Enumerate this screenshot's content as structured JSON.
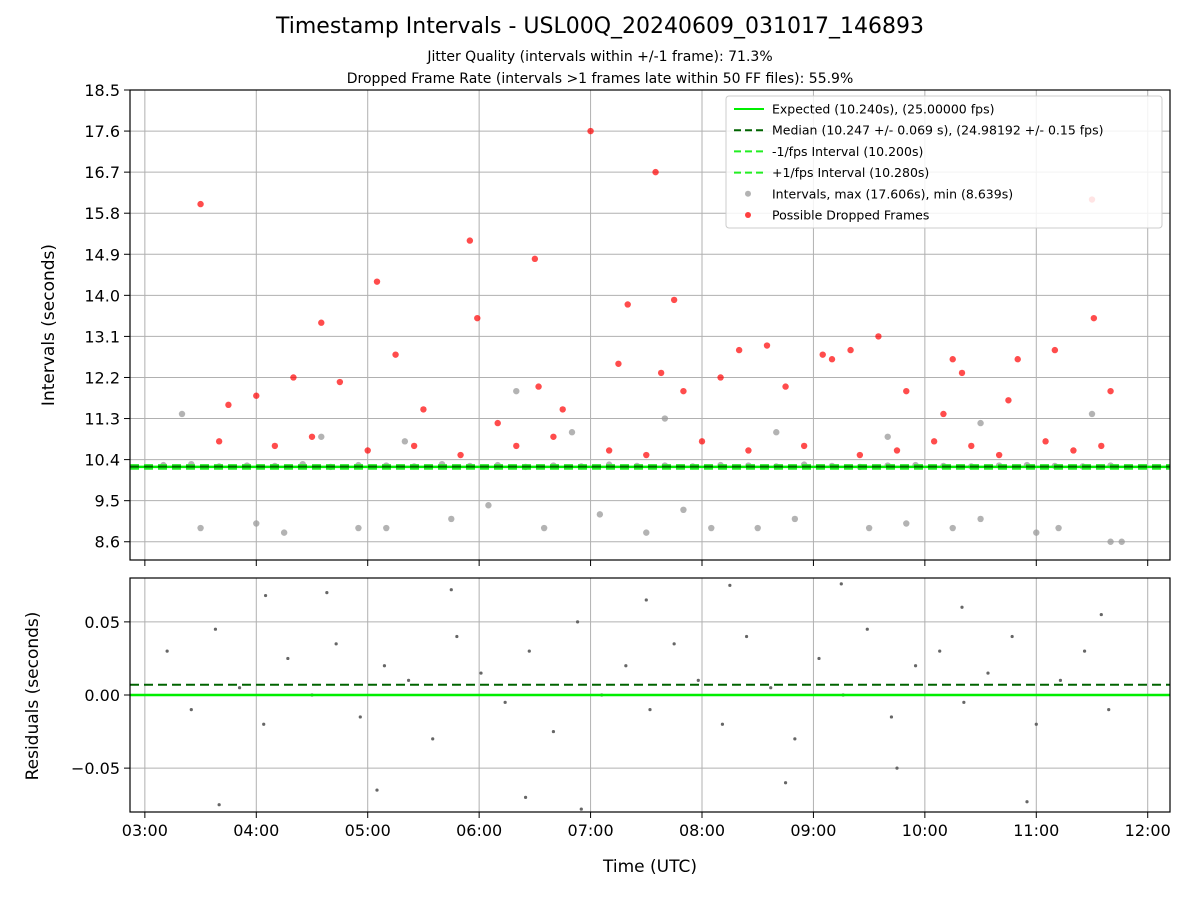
{
  "figure": {
    "title": "Timestamp Intervals - USL00Q_20240609_031017_146893",
    "subtitle_1": "Jitter Quality (intervals within +/-1 frame): 71.3%",
    "subtitle_2": "Dropped Frame Rate (intervals >1 frames late within 50 FF files): 55.9%"
  },
  "chart_data": [
    {
      "type": "scatter",
      "ylabel": "Intervals (seconds)",
      "ylim": [
        8.2,
        18.5
      ],
      "yticks": [
        8.6,
        9.5,
        10.4,
        11.3,
        12.2,
        13.1,
        14.0,
        14.9,
        15.8,
        16.7,
        17.6,
        18.5
      ],
      "ytick_labels": [
        "8.6",
        "9.5",
        "10.4",
        "11.3",
        "12.2",
        "13.1",
        "14.0",
        "14.9",
        "15.8",
        "16.7",
        "17.6",
        "18.5"
      ],
      "xlim": [
        "02:52",
        "12:12"
      ],
      "grid": true,
      "legend_position": "top-right",
      "colors": {
        "expected": "#00ee00",
        "median": "#006400",
        "interval_band": "#22ee22",
        "intervals": "#999999",
        "dropped": "#ff0000"
      },
      "series": [
        {
          "name": "Expected (10.240s), (25.00000 fps)",
          "kind": "hline",
          "y": 10.24,
          "style": "solid"
        },
        {
          "name": "Median (10.247 +/- 0.069 s), (24.98192 +/- 0.15 fps)",
          "kind": "hline",
          "y": 10.247,
          "style": "dashed"
        },
        {
          "name": "-1/fps Interval (10.200s)",
          "kind": "hline",
          "y": 10.2,
          "style": "dashed"
        },
        {
          "name": "+1/fps Interval (10.280s)",
          "kind": "hline",
          "y": 10.28,
          "style": "dashed"
        },
        {
          "name": "Intervals, max (17.606s), min (8.639s)",
          "kind": "points",
          "x": [
            "03:10",
            "03:25",
            "03:40",
            "03:55",
            "04:10",
            "04:25",
            "04:40",
            "04:55",
            "05:10",
            "05:25",
            "05:40",
            "05:55",
            "06:10",
            "06:25",
            "06:40",
            "06:55",
            "07:10",
            "07:25",
            "07:40",
            "07:55",
            "08:10",
            "08:25",
            "08:40",
            "08:55",
            "09:10",
            "09:25",
            "09:40",
            "09:55",
            "10:10",
            "10:25",
            "10:40",
            "10:55",
            "11:10",
            "11:25",
            "11:40",
            "03:30",
            "04:00",
            "04:15",
            "04:55",
            "05:10",
            "05:45",
            "06:05",
            "06:35",
            "07:05",
            "07:30",
            "07:50",
            "08:05",
            "08:30",
            "08:50",
            "09:30",
            "09:50",
            "10:15",
            "10:30",
            "11:00",
            "11:12",
            "11:40",
            "11:46",
            "03:20",
            "04:35",
            "05:20",
            "06:20",
            "06:50",
            "07:40",
            "08:40",
            "09:40",
            "10:30",
            "11:30"
          ],
          "y": [
            10.28,
            10.3,
            10.25,
            10.27,
            10.26,
            10.3,
            10.24,
            10.28,
            10.27,
            10.25,
            10.3,
            10.26,
            10.28,
            10.24,
            10.27,
            10.25,
            10.29,
            10.26,
            10.27,
            10.25,
            10.28,
            10.27,
            10.25,
            10.29,
            10.26,
            10.24,
            10.27,
            10.28,
            10.26,
            10.25,
            10.27,
            10.28,
            10.26,
            10.25,
            10.27,
            8.9,
            9.0,
            8.8,
            8.9,
            8.9,
            9.1,
            9.4,
            8.9,
            9.2,
            8.8,
            9.3,
            8.9,
            8.9,
            9.1,
            8.9,
            9.0,
            8.9,
            9.1,
            8.8,
            8.9,
            8.6,
            8.6,
            11.4,
            10.9,
            10.8,
            11.9,
            11.0,
            11.3,
            11.0,
            10.9,
            11.2,
            11.4
          ]
        },
        {
          "name": "Possible Dropped Frames",
          "kind": "points",
          "x": [
            "03:30",
            "04:20",
            "04:35",
            "05:05",
            "05:55",
            "05:59",
            "06:30",
            "06:32",
            "07:00",
            "07:20",
            "07:35",
            "07:38",
            "07:45",
            "08:35",
            "09:05",
            "09:35",
            "10:15",
            "11:30",
            "11:31",
            "03:45",
            "04:00",
            "04:45",
            "05:15",
            "05:30",
            "06:10",
            "06:45",
            "07:15",
            "07:50",
            "08:10",
            "08:20",
            "08:45",
            "09:10",
            "09:20",
            "09:50",
            "10:10",
            "10:20",
            "10:45",
            "10:50",
            "11:10",
            "11:40",
            "03:40",
            "04:10",
            "04:30",
            "05:00",
            "05:25",
            "05:50",
            "06:20",
            "06:40",
            "07:10",
            "07:30",
            "08:00",
            "08:25",
            "08:55",
            "09:25",
            "09:45",
            "10:05",
            "10:25",
            "10:40",
            "11:05",
            "11:20",
            "11:35"
          ],
          "y": [
            16.0,
            12.2,
            13.4,
            14.3,
            15.2,
            13.5,
            14.8,
            12.0,
            17.6,
            13.8,
            16.7,
            12.3,
            13.9,
            12.9,
            12.7,
            13.1,
            12.6,
            16.1,
            13.5,
            11.6,
            11.8,
            12.1,
            12.7,
            11.5,
            11.2,
            11.5,
            12.5,
            11.9,
            12.2,
            12.8,
            12.0,
            12.6,
            12.8,
            11.9,
            11.4,
            12.3,
            11.7,
            12.6,
            12.8,
            11.9,
            10.8,
            10.7,
            10.9,
            10.6,
            10.7,
            10.5,
            10.7,
            10.9,
            10.6,
            10.5,
            10.8,
            10.6,
            10.7,
            10.5,
            10.6,
            10.8,
            10.7,
            10.5,
            10.8,
            10.6,
            10.7
          ]
        }
      ]
    },
    {
      "type": "scatter",
      "xlabel": "Time (UTC)",
      "ylabel": "Residuals (seconds)",
      "ylim": [
        -0.08,
        0.08
      ],
      "yticks": [
        -0.05,
        0.0,
        0.05
      ],
      "ytick_labels": [
        "−0.05",
        "0.00",
        "0.05"
      ],
      "xlim": [
        "02:52",
        "12:12"
      ],
      "xticks": [
        "03:00",
        "04:00",
        "05:00",
        "06:00",
        "07:00",
        "08:00",
        "09:00",
        "10:00",
        "11:00",
        "12:00"
      ],
      "xtick_labels": [
        "03:00",
        "04:00",
        "05:00",
        "06:00",
        "07:00",
        "08:00",
        "09:00",
        "10:00",
        "11:00",
        "12:00"
      ],
      "grid": true,
      "colors": {
        "zero": "#00ee00",
        "median": "#006400",
        "points": "#666666"
      },
      "series": [
        {
          "kind": "hline",
          "y": 0.0,
          "style": "solid"
        },
        {
          "kind": "hline",
          "y": 0.007,
          "style": "dashed"
        },
        {
          "kind": "points",
          "x": [
            "03:12",
            "03:25",
            "03:38",
            "03:51",
            "04:04",
            "04:17",
            "04:30",
            "04:43",
            "04:56",
            "05:09",
            "05:22",
            "05:35",
            "05:48",
            "06:01",
            "06:14",
            "06:27",
            "06:40",
            "06:53",
            "07:06",
            "07:19",
            "07:32",
            "07:45",
            "07:58",
            "08:11",
            "08:24",
            "08:37",
            "08:50",
            "09:03",
            "09:16",
            "09:29",
            "09:42",
            "09:55",
            "10:08",
            "10:21",
            "10:34",
            "10:47",
            "11:00",
            "11:13",
            "11:26",
            "11:39",
            "03:40",
            "04:05",
            "04:38",
            "05:05",
            "05:45",
            "06:25",
            "06:55",
            "07:30",
            "08:15",
            "08:45",
            "09:15",
            "09:45",
            "10:20",
            "10:55",
            "11:35"
          ],
          "y": [
            0.03,
            -0.01,
            0.045,
            0.005,
            -0.02,
            0.025,
            0.0,
            0.035,
            -0.015,
            0.02,
            0.01,
            -0.03,
            0.04,
            0.015,
            -0.005,
            0.03,
            -0.025,
            0.05,
            0.0,
            0.02,
            -0.01,
            0.035,
            0.01,
            -0.02,
            0.04,
            0.005,
            -0.03,
            0.025,
            0.0,
            0.045,
            -0.015,
            0.02,
            0.03,
            -0.005,
            0.015,
            0.04,
            -0.02,
            0.01,
            0.03,
            -0.01,
            -0.075,
            0.068,
            0.07,
            -0.065,
            0.072,
            -0.07,
            -0.078,
            0.065,
            0.075,
            -0.06,
            0.076,
            -0.05,
            0.06,
            -0.073,
            0.055
          ]
        }
      ]
    }
  ]
}
